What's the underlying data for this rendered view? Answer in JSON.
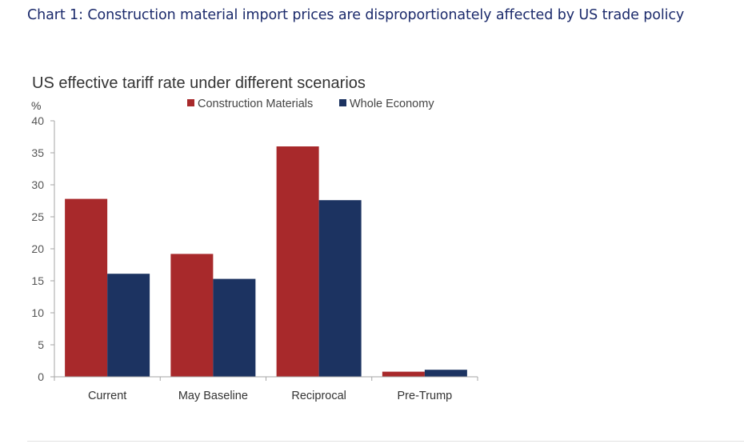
{
  "heading": "Chart 1: Construction material import prices are disproportionately affected by US trade policy",
  "chart_data": {
    "type": "bar",
    "title": "US effective tariff rate under different scenarios",
    "ylabel": "%",
    "xlabel": "",
    "categories": [
      "Current",
      "May Baseline",
      "Reciprocal",
      "Pre-Trump"
    ],
    "series": [
      {
        "name": "Construction Materials",
        "color": "#a8292b",
        "values": [
          27.8,
          19.2,
          36.0,
          0.8
        ]
      },
      {
        "name": "Whole Economy",
        "color": "#1c3361",
        "values": [
          16.1,
          15.3,
          27.6,
          1.1
        ]
      }
    ],
    "ylim": [
      0,
      40
    ],
    "yticks": [
      0,
      5,
      10,
      15,
      20,
      25,
      30,
      35,
      40
    ],
    "legend_position": "top",
    "grid": false
  }
}
